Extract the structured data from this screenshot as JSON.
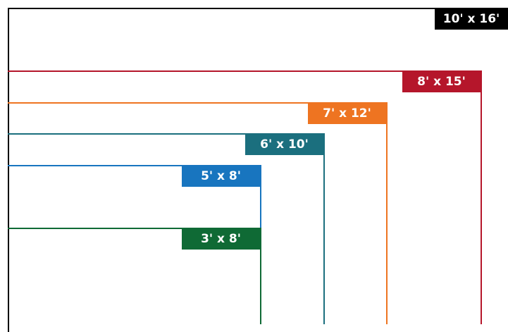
{
  "sizes": [
    {
      "label": "10' x 16'",
      "width_ft": 10,
      "length_ft": 16,
      "color": "#000000"
    },
    {
      "label": "8' x 15'",
      "width_ft": 8,
      "length_ft": 15,
      "color": "#b5162b"
    },
    {
      "label": "7' x 12'",
      "width_ft": 7,
      "length_ft": 12,
      "color": "#ee7421"
    },
    {
      "label": "6' x 10'",
      "width_ft": 6,
      "length_ft": 10,
      "color": "#1b6f7e"
    },
    {
      "label": "5' x 8'",
      "width_ft": 5,
      "length_ft": 8,
      "color": "#1875bf"
    },
    {
      "label": "3' x 8'",
      "width_ft": 3,
      "length_ft": 8,
      "color": "#0f6a35"
    }
  ]
}
